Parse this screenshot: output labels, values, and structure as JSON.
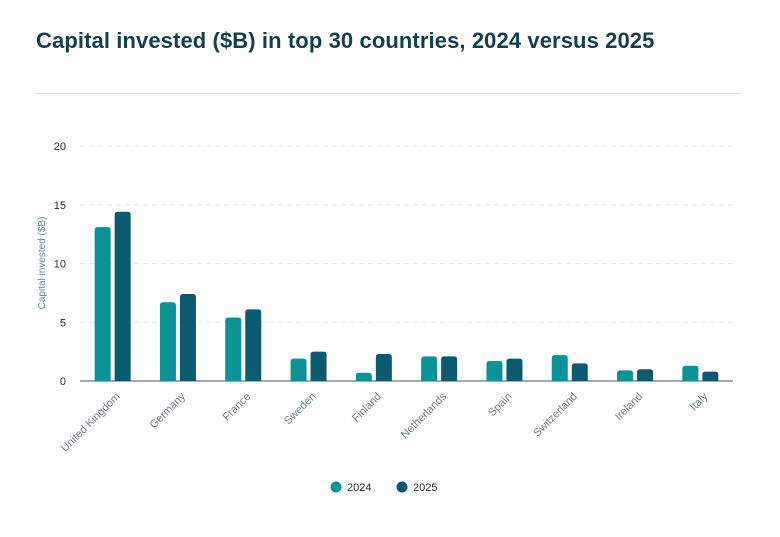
{
  "colors": {
    "series_2024": "#0a9396",
    "series_2025": "#0b5a70",
    "title": "#123f4d"
  },
  "chart_data": {
    "type": "bar",
    "title": "Capital invested ($B) in top 30 countries, 2024 versus 2025",
    "ylabel": "Capital invested ($B)",
    "xlabel": "",
    "ylim": [
      0,
      20
    ],
    "yticks": [
      "0",
      "5",
      "10",
      "15",
      "20"
    ],
    "grid": true,
    "legend_position": "bottom",
    "categories": [
      "United Kingdom",
      "Germany",
      "France",
      "Sweden",
      "Finland",
      "Netherlands",
      "Spain",
      "Switzerland",
      "Ireland",
      "Italy"
    ],
    "series": [
      {
        "name": "2024",
        "values": [
          13.1,
          6.7,
          5.4,
          1.9,
          0.7,
          2.1,
          1.7,
          2.2,
          0.9,
          1.3
        ]
      },
      {
        "name": "2025",
        "values": [
          14.4,
          7.4,
          6.1,
          2.5,
          2.3,
          2.1,
          1.9,
          1.5,
          1.0,
          0.8
        ]
      }
    ]
  }
}
